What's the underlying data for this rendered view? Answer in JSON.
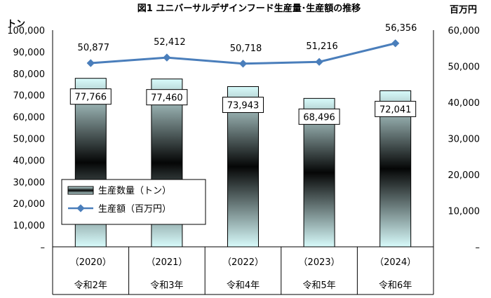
{
  "chart_data": {
    "type": "bar",
    "title": "図1 ユニバーサルデザインフード生産量･生産額の推移",
    "y_left_unit": "トン",
    "y_right_unit": "百万円",
    "y_left_ticks": [
      "100,000",
      "90,000",
      "80,000",
      "70,000",
      "60,000",
      "50,000",
      "40,000",
      "30,000",
      "20,000",
      "10,000",
      "–"
    ],
    "y_right_ticks": [
      "60,000",
      "50,000",
      "40,000",
      "30,000",
      "20,000",
      "10,000",
      "–"
    ],
    "ylim_left": [
      0,
      100000
    ],
    "ylim_right": [
      0,
      60000
    ],
    "grid": false,
    "legend_position": "bottom-left",
    "categories": [
      {
        "year": "（2020）",
        "era": "令和2年"
      },
      {
        "year": "（2021）",
        "era": "令和3年"
      },
      {
        "year": "（2022）",
        "era": "令和4年"
      },
      {
        "year": "（2023）",
        "era": "令和5年"
      },
      {
        "year": "（2024）",
        "era": "令和6年"
      }
    ],
    "series": [
      {
        "name": "生産数量（トン）",
        "type": "bar",
        "axis": "left",
        "values": [
          77766,
          77460,
          73943,
          68496,
          72041
        ],
        "labels": [
          "77,766",
          "77,460",
          "73,943",
          "68,496",
          "72,041"
        ]
      },
      {
        "name": "生産額（百万円）",
        "type": "line",
        "axis": "right",
        "color": "#4a7ebb",
        "values": [
          50877,
          52412,
          50718,
          51216,
          56356
        ],
        "labels": [
          "50,877",
          "52,412",
          "50,718",
          "51,216",
          "56,356"
        ]
      }
    ]
  }
}
